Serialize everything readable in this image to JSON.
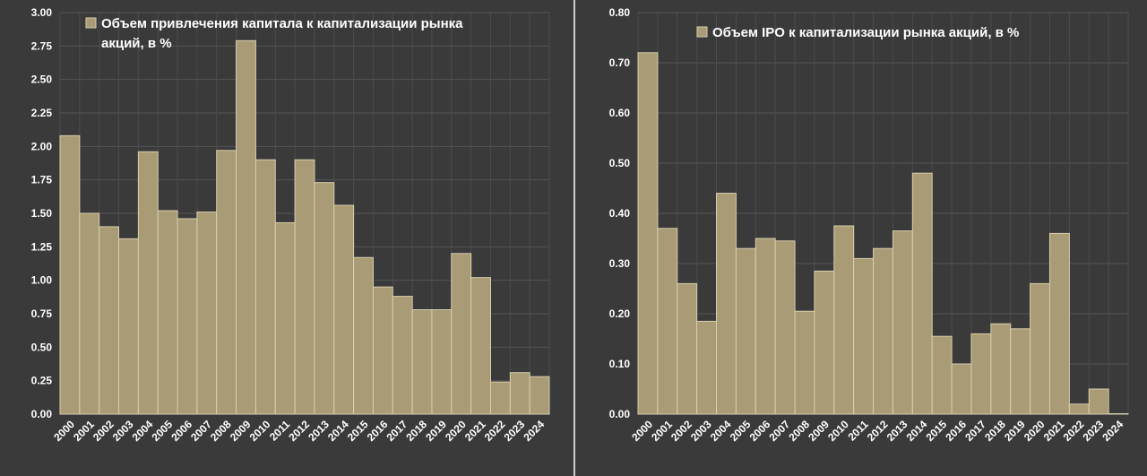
{
  "chart_data": [
    {
      "type": "bar",
      "title": "",
      "xlabel": "",
      "ylabel": "",
      "legend": {
        "position": "top-left",
        "entries": [
          {
            "lines": [
              "Объем привлечения капитала к капитализации рынка",
              "акций, в %"
            ],
            "color": "#a89b76"
          }
        ]
      },
      "categories": [
        "2000",
        "2001",
        "2002",
        "2003",
        "2004",
        "2005",
        "2006",
        "2007",
        "2008",
        "2009",
        "2010",
        "2011",
        "2012",
        "2013",
        "2014",
        "2015",
        "2016",
        "2017",
        "2018",
        "2019",
        "2020",
        "2021",
        "2022",
        "2023",
        "2024"
      ],
      "values": [
        2.08,
        1.5,
        1.4,
        1.31,
        1.96,
        1.52,
        1.46,
        1.51,
        1.97,
        2.79,
        1.9,
        1.43,
        1.9,
        1.73,
        1.56,
        1.17,
        0.95,
        0.88,
        0.78,
        0.78,
        1.2,
        1.02,
        0.24,
        0.31,
        0.28
      ],
      "ylim": [
        0,
        3.0
      ],
      "yticks": [
        "0.00",
        "0.25",
        "0.50",
        "0.75",
        "1.00",
        "1.25",
        "1.50",
        "1.75",
        "2.00",
        "2.25",
        "2.50",
        "2.75",
        "3.00"
      ],
      "grid": true
    },
    {
      "type": "bar",
      "title": "",
      "xlabel": "",
      "ylabel": "",
      "legend": {
        "position": "top-left",
        "entries": [
          {
            "lines": [
              "Объем IPO к капитализации рынка акций, в %"
            ],
            "color": "#a89b76"
          }
        ]
      },
      "categories": [
        "2000",
        "2001",
        "2002",
        "2003",
        "2004",
        "2005",
        "2006",
        "2007",
        "2008",
        "2009",
        "2010",
        "2011",
        "2012",
        "2013",
        "2014",
        "2015",
        "2016",
        "2017",
        "2018",
        "2019",
        "2020",
        "2021",
        "2022",
        "2023",
        "2024"
      ],
      "values": [
        0.72,
        0.37,
        0.26,
        0.185,
        0.44,
        0.33,
        0.35,
        0.345,
        0.205,
        0.285,
        0.375,
        0.31,
        0.33,
        0.365,
        0.48,
        0.155,
        0.1,
        0.16,
        0.18,
        0.17,
        0.26,
        0.36,
        0.02,
        0.05,
        0.0
      ],
      "ylim": [
        0,
        0.8
      ],
      "yticks": [
        "0.00",
        "0.10",
        "0.20",
        "0.30",
        "0.40",
        "0.50",
        "0.60",
        "0.70",
        "0.80"
      ],
      "grid": true
    }
  ]
}
